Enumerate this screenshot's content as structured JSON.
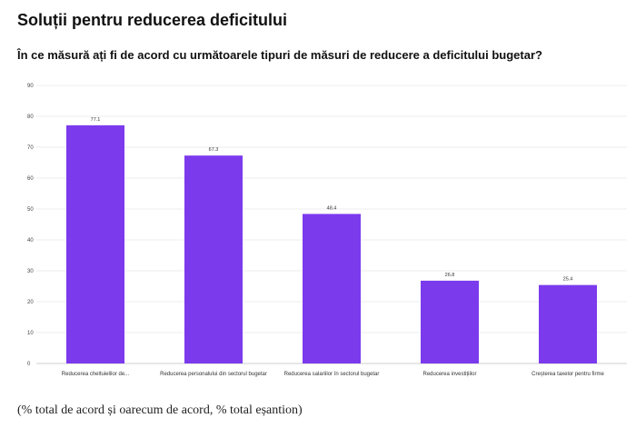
{
  "title": "Soluții pentru reducerea deficitului",
  "subtitle": "În ce măsură ați fi de acord cu următoarele tipuri de măsuri de reducere a deficitului bugetar?",
  "footnote": "(% total de acord și oarecum de acord, % total eșantion)",
  "colors": {
    "bar": "#7c3aed",
    "grid": "#ececec",
    "axis": "#cfcfcf"
  },
  "chart_data": {
    "type": "bar",
    "title": "Soluții pentru reducerea deficitului",
    "subtitle": "În ce măsură ați fi de acord cu următoarele tipuri de măsuri de reducere a deficitului bugetar?",
    "xlabel": "",
    "ylabel": "",
    "categories": [
      "Reducerea cheltuielilor de...",
      "Reducerea personalului din sectorul bugetar",
      "Reducerea salariilor în sectorul bugetar",
      "Reducerea investițiilor",
      "Creșterea taxelor pentru firme"
    ],
    "values": [
      77.1,
      67.3,
      48.4,
      26.8,
      25.4
    ],
    "value_labels": [
      "77.1",
      "67.3",
      "48.4",
      "26.8",
      "25.4"
    ],
    "ylim": [
      0,
      90
    ],
    "yticks": [
      0,
      10,
      20,
      30,
      40,
      50,
      60,
      70,
      80,
      90
    ],
    "grid": true,
    "legend": "none"
  }
}
